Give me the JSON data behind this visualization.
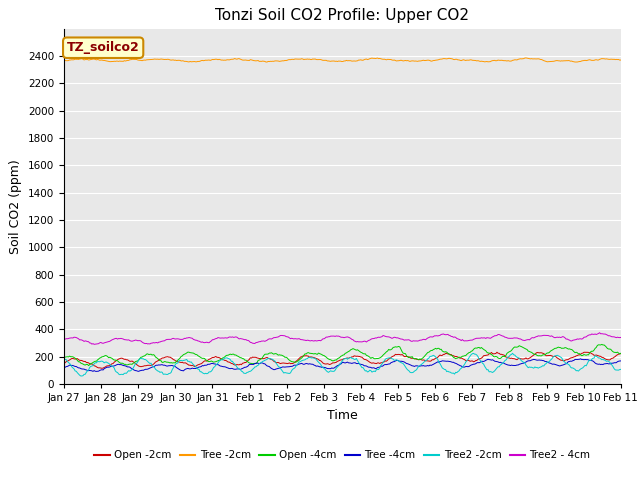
{
  "title": "Tonzi Soil CO2 Profile: Upper CO2",
  "xlabel": "Time",
  "ylabel": "Soil CO2 (ppm)",
  "ylim": [
    0,
    2600
  ],
  "yticks": [
    0,
    200,
    400,
    600,
    800,
    1000,
    1200,
    1400,
    1600,
    1800,
    2000,
    2200,
    2400
  ],
  "num_points": 500,
  "annotation_label": "TZ_soilco2",
  "series": [
    {
      "label": "Open -2cm",
      "color": "#cc0000",
      "base": 150,
      "amp": 25,
      "freq": 0.8,
      "trend": 60,
      "noise": 18,
      "phase": 0.0
    },
    {
      "label": "Tree -2cm",
      "color": "#ff9900",
      "base": 2370,
      "amp": 8,
      "freq": 0.5,
      "trend": 0,
      "noise": 12,
      "phase": 0.0
    },
    {
      "label": "Open -4cm",
      "color": "#00cc00",
      "base": 170,
      "amp": 35,
      "freq": 0.9,
      "trend": 80,
      "noise": 22,
      "phase": 1.2
    },
    {
      "label": "Tree -4cm",
      "color": "#0000cc",
      "base": 110,
      "amp": 20,
      "freq": 0.8,
      "trend": 55,
      "noise": 15,
      "phase": 0.5
    },
    {
      "label": "Tree2 -2cm",
      "color": "#00cccc",
      "base": 125,
      "amp": 55,
      "freq": 0.9,
      "trend": 30,
      "noise": 28,
      "phase": 2.0
    },
    {
      "label": "Tree2 - 4cm",
      "color": "#cc00cc",
      "base": 315,
      "amp": 20,
      "freq": 0.7,
      "trend": 30,
      "noise": 18,
      "phase": 0.8
    }
  ],
  "bg_color": "#e8e8e8",
  "x_tick_labels": [
    "Jan 27",
    "Jan 28",
    "Jan 29",
    "Jan 30",
    "Jan 31",
    "Feb 1",
    "Feb 2",
    "Feb 3",
    "Feb 4",
    "Feb 5",
    "Feb 6",
    "Feb 7",
    "Feb 8",
    "Feb 9",
    "Feb 10",
    "Feb 11"
  ],
  "x_tick_labels_compact": [
    "Jan 27",
    "Jan 28",
    "Jan 29",
    "Jan 30",
    "Jan 31",
    " Feb 1",
    " Feb 2",
    " Feb 3",
    " Feb 4",
    " Feb 5",
    " Feb 6",
    " Feb 7",
    " Feb 8",
    " Feb 9",
    "Feb 10",
    "Feb 11"
  ],
  "title_fontsize": 11,
  "tick_fontsize": 7.5,
  "ylabel_fontsize": 9,
  "xlabel_fontsize": 9
}
